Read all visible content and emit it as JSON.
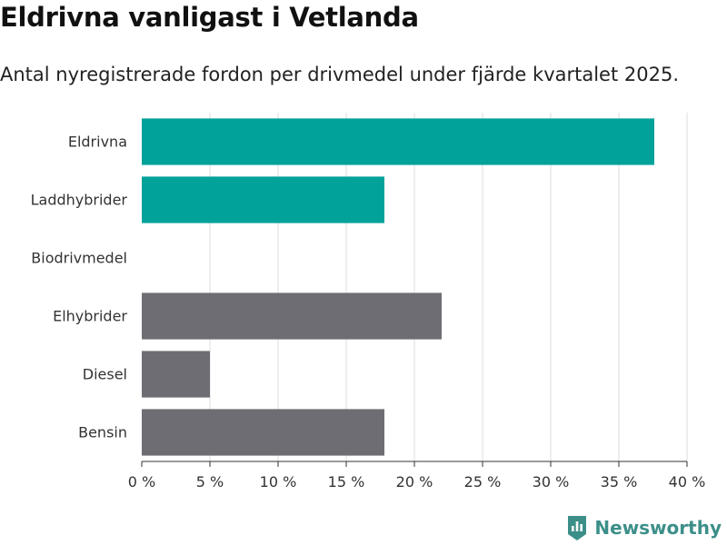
{
  "header": {
    "title": "Eldrivna vanligast i Vetlanda",
    "subtitle": "Antal nyregistrerade fordon per drivmedel under fjärde kvartalet 2025."
  },
  "brand": {
    "name": "Newsworthy"
  },
  "colors": {
    "highlight": "#00a29a",
    "default": "#6e6d73",
    "grid": "#dddddd",
    "axis": "#333333"
  },
  "chart_data": {
    "type": "bar",
    "orientation": "horizontal",
    "title": "Eldrivna vanligast i Vetlanda",
    "subtitle": "Antal nyregistrerade fordon per drivmedel under fjärde kvartalet 2025.",
    "xlabel": "",
    "ylabel": "",
    "unit": "%",
    "xlim": [
      0,
      40
    ],
    "xticks": [
      0,
      5,
      10,
      15,
      20,
      25,
      30,
      35,
      40
    ],
    "xtick_labels": [
      "0 %",
      "5 %",
      "10 %",
      "15 %",
      "20 %",
      "25 %",
      "30 %",
      "35 %",
      "40 %"
    ],
    "grid": true,
    "categories": [
      "Eldrivna",
      "Laddhybrider",
      "Biodrivmedel",
      "Elhybrider",
      "Diesel",
      "Bensin"
    ],
    "values": [
      37.6,
      17.8,
      0,
      22.0,
      5.0,
      17.8
    ],
    "highlighted": [
      true,
      true,
      true,
      false,
      false,
      false
    ]
  }
}
